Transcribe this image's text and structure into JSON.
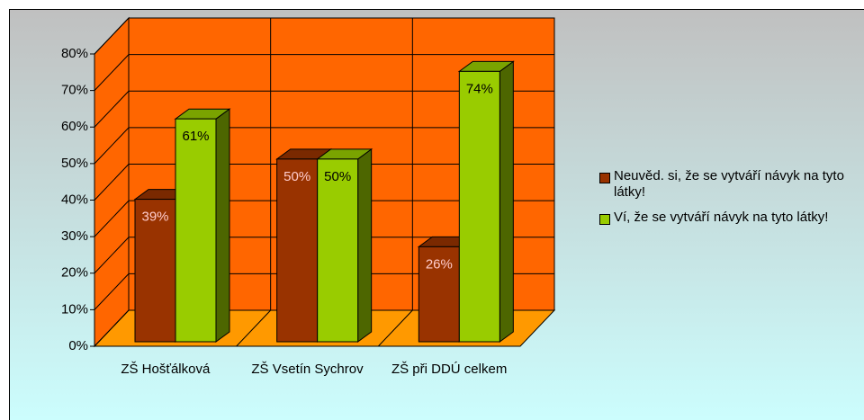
{
  "chart_data": {
    "type": "bar3d",
    "categories": [
      "ZŠ Hošťálková",
      "ZŠ Vsetín Sychrov",
      "ZŠ při DDÚ celkem"
    ],
    "series": [
      {
        "name": "Neuvěd. si, že se vytváří návyk na tyto látky!",
        "color": "#993300",
        "values": [
          39,
          50,
          26
        ],
        "value_labels": [
          "39%",
          "50%",
          "26%"
        ]
      },
      {
        "name": "Ví, že se vytváří návyk na tyto látky!",
        "color": "#99cc00",
        "values": [
          61,
          50,
          74
        ],
        "value_labels": [
          "61%",
          "50%",
          "74%"
        ]
      }
    ],
    "ylim": [
      0,
      80
    ],
    "yticks": [
      {
        "value": 0,
        "label": "0%"
      },
      {
        "value": 10,
        "label": "10%"
      },
      {
        "value": 20,
        "label": "20%"
      },
      {
        "value": 30,
        "label": "30%"
      },
      {
        "value": 40,
        "label": "40%"
      },
      {
        "value": 50,
        "label": "50%"
      },
      {
        "value": 60,
        "label": "60%"
      },
      {
        "value": 70,
        "label": "70%"
      },
      {
        "value": 80,
        "label": "80%"
      }
    ],
    "grid": true,
    "legend": "right"
  }
}
